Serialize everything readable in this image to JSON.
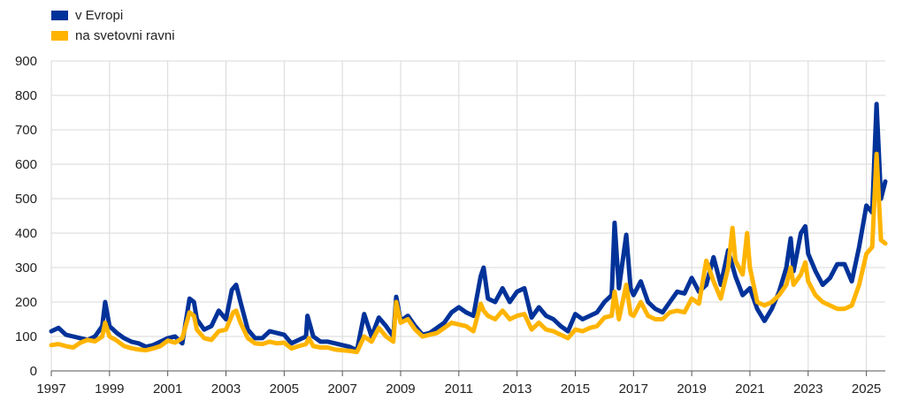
{
  "chart_data": {
    "type": "line",
    "title": "",
    "xlabel": "",
    "ylabel": "",
    "xlim": [
      1997,
      2025.65
    ],
    "ylim": [
      0,
      900
    ],
    "grid": true,
    "legend_position": "top-left",
    "x_ticks": [
      "1997",
      "1999",
      "2001",
      "2003",
      "2005",
      "2007",
      "2009",
      "2011",
      "2013",
      "2015",
      "2017",
      "2019",
      "2021",
      "2023",
      "2025"
    ],
    "y_ticks": [
      "0",
      "100",
      "200",
      "300",
      "400",
      "500",
      "600",
      "700",
      "800",
      "900"
    ],
    "series": [
      {
        "name": "v Evropi",
        "color": "#003299",
        "points": [
          [
            1997.0,
            115
          ],
          [
            1997.25,
            125
          ],
          [
            1997.5,
            105
          ],
          [
            1997.75,
            100
          ],
          [
            1998.0,
            95
          ],
          [
            1998.25,
            90
          ],
          [
            1998.5,
            100
          ],
          [
            1998.75,
            130
          ],
          [
            1998.85,
            200
          ],
          [
            1999.0,
            130
          ],
          [
            1999.25,
            110
          ],
          [
            1999.5,
            95
          ],
          [
            1999.75,
            85
          ],
          [
            2000.0,
            80
          ],
          [
            2000.25,
            70
          ],
          [
            2000.5,
            75
          ],
          [
            2000.75,
            85
          ],
          [
            2001.0,
            95
          ],
          [
            2001.25,
            100
          ],
          [
            2001.5,
            80
          ],
          [
            2001.75,
            210
          ],
          [
            2001.9,
            200
          ],
          [
            2002.0,
            150
          ],
          [
            2002.25,
            120
          ],
          [
            2002.5,
            130
          ],
          [
            2002.75,
            175
          ],
          [
            2003.0,
            150
          ],
          [
            2003.2,
            235
          ],
          [
            2003.35,
            250
          ],
          [
            2003.5,
            200
          ],
          [
            2003.75,
            120
          ],
          [
            2004.0,
            95
          ],
          [
            2004.25,
            95
          ],
          [
            2004.5,
            115
          ],
          [
            2004.75,
            110
          ],
          [
            2005.0,
            105
          ],
          [
            2005.25,
            80
          ],
          [
            2005.5,
            90
          ],
          [
            2005.75,
            100
          ],
          [
            2005.8,
            160
          ],
          [
            2006.0,
            100
          ],
          [
            2006.25,
            85
          ],
          [
            2006.5,
            85
          ],
          [
            2006.75,
            80
          ],
          [
            2007.0,
            75
          ],
          [
            2007.25,
            70
          ],
          [
            2007.5,
            60
          ],
          [
            2007.75,
            165
          ],
          [
            2008.0,
            100
          ],
          [
            2008.25,
            155
          ],
          [
            2008.5,
            130
          ],
          [
            2008.75,
            100
          ],
          [
            2008.85,
            215
          ],
          [
            2009.0,
            145
          ],
          [
            2009.25,
            160
          ],
          [
            2009.5,
            130
          ],
          [
            2009.75,
            105
          ],
          [
            2010.0,
            110
          ],
          [
            2010.25,
            125
          ],
          [
            2010.5,
            140
          ],
          [
            2010.75,
            170
          ],
          [
            2011.0,
            185
          ],
          [
            2011.25,
            170
          ],
          [
            2011.5,
            160
          ],
          [
            2011.75,
            275
          ],
          [
            2011.85,
            300
          ],
          [
            2012.0,
            210
          ],
          [
            2012.25,
            200
          ],
          [
            2012.5,
            240
          ],
          [
            2012.75,
            200
          ],
          [
            2013.0,
            230
          ],
          [
            2013.25,
            240
          ],
          [
            2013.5,
            155
          ],
          [
            2013.75,
            185
          ],
          [
            2014.0,
            160
          ],
          [
            2014.25,
            150
          ],
          [
            2014.5,
            130
          ],
          [
            2014.75,
            115
          ],
          [
            2015.0,
            165
          ],
          [
            2015.25,
            150
          ],
          [
            2015.5,
            160
          ],
          [
            2015.75,
            170
          ],
          [
            2016.0,
            200
          ],
          [
            2016.25,
            220
          ],
          [
            2016.35,
            430
          ],
          [
            2016.5,
            240
          ],
          [
            2016.75,
            395
          ],
          [
            2016.9,
            240
          ],
          [
            2017.0,
            220
          ],
          [
            2017.25,
            260
          ],
          [
            2017.5,
            200
          ],
          [
            2017.75,
            180
          ],
          [
            2018.0,
            170
          ],
          [
            2018.25,
            200
          ],
          [
            2018.5,
            230
          ],
          [
            2018.75,
            225
          ],
          [
            2019.0,
            270
          ],
          [
            2019.25,
            230
          ],
          [
            2019.5,
            250
          ],
          [
            2019.75,
            330
          ],
          [
            2020.0,
            250
          ],
          [
            2020.25,
            350
          ],
          [
            2020.5,
            275
          ],
          [
            2020.75,
            220
          ],
          [
            2021.0,
            240
          ],
          [
            2021.25,
            180
          ],
          [
            2021.5,
            145
          ],
          [
            2021.75,
            180
          ],
          [
            2022.0,
            230
          ],
          [
            2022.25,
            300
          ],
          [
            2022.4,
            385
          ],
          [
            2022.5,
            290
          ],
          [
            2022.75,
            400
          ],
          [
            2022.9,
            420
          ],
          [
            2023.0,
            340
          ],
          [
            2023.25,
            290
          ],
          [
            2023.5,
            250
          ],
          [
            2023.75,
            270
          ],
          [
            2024.0,
            310
          ],
          [
            2024.25,
            310
          ],
          [
            2024.5,
            260
          ],
          [
            2024.75,
            360
          ],
          [
            2025.0,
            480
          ],
          [
            2025.2,
            460
          ],
          [
            2025.35,
            775
          ],
          [
            2025.5,
            500
          ],
          [
            2025.65,
            550
          ]
        ]
      },
      {
        "name": "na svetovni ravni",
        "color": "#FFB400",
        "points": [
          [
            1997.0,
            75
          ],
          [
            1997.25,
            78
          ],
          [
            1997.5,
            72
          ],
          [
            1997.75,
            68
          ],
          [
            1998.0,
            82
          ],
          [
            1998.25,
            90
          ],
          [
            1998.5,
            86
          ],
          [
            1998.75,
            100
          ],
          [
            1998.85,
            140
          ],
          [
            1999.0,
            100
          ],
          [
            1999.25,
            88
          ],
          [
            1999.5,
            72
          ],
          [
            1999.75,
            66
          ],
          [
            2000.0,
            62
          ],
          [
            2000.25,
            60
          ],
          [
            2000.5,
            65
          ],
          [
            2000.75,
            72
          ],
          [
            2001.0,
            88
          ],
          [
            2001.25,
            82
          ],
          [
            2001.5,
            95
          ],
          [
            2001.75,
            170
          ],
          [
            2001.9,
            160
          ],
          [
            2002.0,
            120
          ],
          [
            2002.25,
            95
          ],
          [
            2002.5,
            90
          ],
          [
            2002.75,
            115
          ],
          [
            2003.0,
            120
          ],
          [
            2003.25,
            170
          ],
          [
            2003.35,
            175
          ],
          [
            2003.5,
            140
          ],
          [
            2003.75,
            95
          ],
          [
            2004.0,
            80
          ],
          [
            2004.25,
            78
          ],
          [
            2004.5,
            85
          ],
          [
            2004.75,
            80
          ],
          [
            2005.0,
            82
          ],
          [
            2005.25,
            65
          ],
          [
            2005.5,
            72
          ],
          [
            2005.75,
            78
          ],
          [
            2005.85,
            95
          ],
          [
            2006.0,
            72
          ],
          [
            2006.25,
            68
          ],
          [
            2006.5,
            68
          ],
          [
            2006.75,
            62
          ],
          [
            2007.0,
            60
          ],
          [
            2007.25,
            58
          ],
          [
            2007.5,
            55
          ],
          [
            2007.75,
            100
          ],
          [
            2008.0,
            85
          ],
          [
            2008.25,
            125
          ],
          [
            2008.5,
            100
          ],
          [
            2008.75,
            85
          ],
          [
            2008.85,
            200
          ],
          [
            2009.0,
            140
          ],
          [
            2009.25,
            150
          ],
          [
            2009.5,
            120
          ],
          [
            2009.75,
            100
          ],
          [
            2010.0,
            105
          ],
          [
            2010.25,
            110
          ],
          [
            2010.5,
            125
          ],
          [
            2010.75,
            140
          ],
          [
            2011.0,
            135
          ],
          [
            2011.25,
            130
          ],
          [
            2011.5,
            115
          ],
          [
            2011.75,
            195
          ],
          [
            2011.85,
            175
          ],
          [
            2012.0,
            160
          ],
          [
            2012.25,
            150
          ],
          [
            2012.5,
            175
          ],
          [
            2012.75,
            150
          ],
          [
            2013.0,
            160
          ],
          [
            2013.25,
            165
          ],
          [
            2013.5,
            120
          ],
          [
            2013.75,
            140
          ],
          [
            2014.0,
            120
          ],
          [
            2014.25,
            115
          ],
          [
            2014.5,
            105
          ],
          [
            2014.75,
            95
          ],
          [
            2015.0,
            120
          ],
          [
            2015.25,
            115
          ],
          [
            2015.5,
            125
          ],
          [
            2015.75,
            130
          ],
          [
            2016.0,
            155
          ],
          [
            2016.25,
            160
          ],
          [
            2016.35,
            230
          ],
          [
            2016.5,
            150
          ],
          [
            2016.75,
            250
          ],
          [
            2016.9,
            165
          ],
          [
            2017.0,
            160
          ],
          [
            2017.25,
            200
          ],
          [
            2017.5,
            160
          ],
          [
            2017.75,
            150
          ],
          [
            2018.0,
            150
          ],
          [
            2018.25,
            170
          ],
          [
            2018.5,
            175
          ],
          [
            2018.75,
            170
          ],
          [
            2019.0,
            210
          ],
          [
            2019.25,
            195
          ],
          [
            2019.5,
            320
          ],
          [
            2019.75,
            260
          ],
          [
            2020.0,
            210
          ],
          [
            2020.25,
            300
          ],
          [
            2020.4,
            415
          ],
          [
            2020.5,
            320
          ],
          [
            2020.75,
            280
          ],
          [
            2020.9,
            400
          ],
          [
            2021.0,
            300
          ],
          [
            2021.25,
            200
          ],
          [
            2021.5,
            190
          ],
          [
            2021.75,
            200
          ],
          [
            2022.0,
            220
          ],
          [
            2022.25,
            250
          ],
          [
            2022.4,
            300
          ],
          [
            2022.5,
            250
          ],
          [
            2022.75,
            280
          ],
          [
            2022.9,
            315
          ],
          [
            2023.0,
            260
          ],
          [
            2023.25,
            220
          ],
          [
            2023.5,
            200
          ],
          [
            2023.75,
            190
          ],
          [
            2024.0,
            180
          ],
          [
            2024.25,
            180
          ],
          [
            2024.5,
            190
          ],
          [
            2024.75,
            250
          ],
          [
            2025.0,
            340
          ],
          [
            2025.2,
            360
          ],
          [
            2025.35,
            630
          ],
          [
            2025.5,
            380
          ],
          [
            2025.65,
            370
          ]
        ]
      }
    ]
  }
}
